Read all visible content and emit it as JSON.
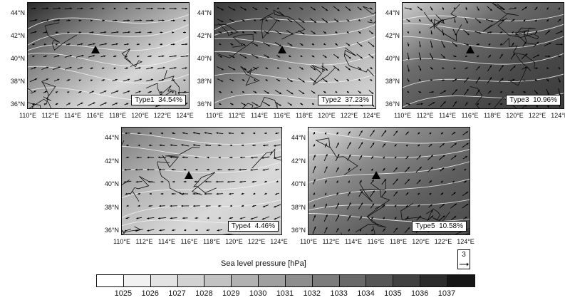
{
  "panels": [
    {
      "id": "type1",
      "label": "Type1  34.54%",
      "shade": [
        "#2a2a2a",
        "#8a8a8a",
        "#d6d6d6",
        "#a9a9a9"
      ],
      "flow": "southwest-westerly"
    },
    {
      "id": "type2",
      "label": "Type2  37.23%",
      "shade": [
        "#3a3a3a",
        "#6a6a6a",
        "#b8b8b8",
        "#dcdcdc"
      ],
      "flow": "northwesterly"
    },
    {
      "id": "type3",
      "label": "Type3  10.96%",
      "shade": [
        "#cfcfcf",
        "#6d6d6d",
        "#4a4a4a",
        "#3a3a3a"
      ],
      "flow": "weak"
    },
    {
      "id": "type4",
      "label": "Type4  4.46%",
      "shade": [
        "#7a7a7a",
        "#b5b5b5",
        "#d9d9d9",
        "#c7c7c7"
      ],
      "flow": "easterly"
    },
    {
      "id": "type5",
      "label": "Type5  10.58%",
      "shade": [
        "#e2e2e2",
        "#8a8a8a",
        "#5e5e5e",
        "#4a4a4a"
      ],
      "flow": "southerly"
    }
  ],
  "lat_ticks": [
    "44°N",
    "42°N",
    "40°N",
    "38°N",
    "36°N"
  ],
  "lon_ticks": [
    "110°E",
    "112°E",
    "114°E",
    "116°E",
    "118°E",
    "120°E",
    "122°E",
    "124°E"
  ],
  "legend": {
    "title": "Sea level pressure [hPa]",
    "levels": [
      "1025",
      "1026",
      "1027",
      "1028",
      "1029",
      "1030",
      "1031",
      "1032",
      "1033",
      "1034",
      "1035",
      "1036",
      "1037"
    ],
    "colors": [
      "#ffffff",
      "#f1f1f1",
      "#e3e3e3",
      "#d2d2d2",
      "#c2c2c2",
      "#b1b1b1",
      "#a0a0a0",
      "#8e8e8e",
      "#7c7c7c",
      "#696969",
      "#565656",
      "#414141",
      "#2c2c2c",
      "#161616"
    ]
  },
  "reference_vector": {
    "value": "3"
  }
}
